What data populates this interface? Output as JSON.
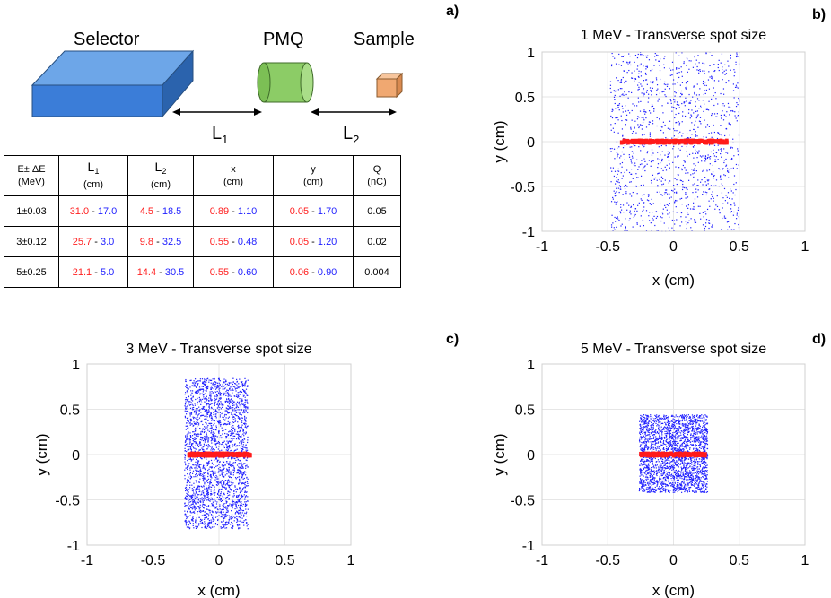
{
  "figure": {
    "panel_labels": {
      "a": "a)",
      "b": "b)",
      "c": "c)",
      "d": "d)"
    },
    "colors": {
      "beam_points": "#1f1fff",
      "red_line": "#ff1a1a",
      "selector": "#3b7dd8",
      "pmq": "#8ccc66",
      "sample": "#f0a871",
      "low_value": "#ff2020",
      "high_value": "#1f1fff"
    }
  },
  "diagram": {
    "labels": {
      "selector": "Selector",
      "pmq": "PMQ",
      "sample": "Sample"
    },
    "distances": {
      "l1": "L",
      "l1_sub": "1",
      "l2": "L",
      "l2_sub": "2"
    }
  },
  "table": {
    "headers": [
      {
        "line1": "E± ΔE",
        "line2": "(MeV)"
      },
      {
        "line1": "L",
        "sub": "1",
        "line2": "(cm)"
      },
      {
        "line1": "L",
        "sub": "2",
        "line2": "(cm)"
      },
      {
        "line1": "x",
        "line2": "(cm)"
      },
      {
        "line1": "y",
        "line2": "(cm)"
      },
      {
        "line1": "Q",
        "line2": "(nC)"
      }
    ],
    "rows": [
      {
        "energy": "1±0.03",
        "l1_a": "31.0",
        "l1_b": "17.0",
        "l2_a": "4.5",
        "l2_b": "18.5",
        "x_a": "0.89",
        "x_b": "1.10",
        "y_a": "0.05",
        "y_b": "1.70",
        "q": "0.05"
      },
      {
        "energy": "3±0.12",
        "l1_a": "25.7",
        "l1_b": "3.0",
        "l2_a": "9.8",
        "l2_b": "32.5",
        "x_a": "0.55",
        "x_b": "0.48",
        "y_a": "0.05",
        "y_b": "1.20",
        "q": "0.02"
      },
      {
        "energy": "5±0.25",
        "l1_a": "21.1",
        "l1_b": "5.0",
        "l2_a": "14.4",
        "l2_b": "30.5",
        "x_a": "0.55",
        "x_b": "0.60",
        "y_a": "0.06",
        "y_b": "0.90",
        "q": "0.004"
      }
    ],
    "separator": " - "
  },
  "chart_data": [
    {
      "type": "scatter",
      "panel": "b)",
      "title": "1 MeV - Transverse spot size",
      "xlabel": "x (cm)",
      "ylabel": "y (cm)",
      "xlim": [
        -1,
        1
      ],
      "ylim": [
        -1,
        1
      ],
      "xticks": [
        -1,
        -0.5,
        0,
        0.5,
        1
      ],
      "yticks": [
        -1,
        -0.5,
        0,
        0.5,
        1
      ],
      "xtick_labels": [
        "-1",
        "-0.5",
        "0",
        "0.5",
        "1"
      ],
      "ytick_labels": [
        "-1",
        "-0.5",
        "0",
        "0.5",
        "1"
      ],
      "grid": true,
      "series": [
        {
          "color": "#1f1fff",
          "distribution": "uniform",
          "x_range": [
            -0.48,
            0.5
          ],
          "y_range": [
            -1.0,
            1.0
          ],
          "count": 1300
        },
        {
          "color": "#ff1a1a",
          "distribution": "line",
          "x_range": [
            -0.4,
            0.42
          ],
          "y_range": [
            -0.01,
            0.01
          ],
          "count": 150
        }
      ]
    },
    {
      "type": "scatter",
      "panel": "c)",
      "title": "3 MeV - Transverse spot size",
      "xlabel": "x (cm)",
      "ylabel": "y (cm)",
      "xlim": [
        -1,
        1
      ],
      "ylim": [
        -1,
        1
      ],
      "xticks": [
        -1,
        -0.5,
        0,
        0.5,
        1
      ],
      "yticks": [
        -1,
        -0.5,
        0,
        0.5,
        1
      ],
      "xtick_labels": [
        "-1",
        "-0.5",
        "0",
        "0.5",
        "1"
      ],
      "ytick_labels": [
        "-1",
        "-0.5",
        "0",
        "0.5",
        "1"
      ],
      "grid": true,
      "series": [
        {
          "color": "#1f1fff",
          "distribution": "uniform",
          "x_range": [
            -0.26,
            0.22
          ],
          "y_range": [
            -0.82,
            0.84
          ],
          "count": 2600
        },
        {
          "color": "#ff1a1a",
          "distribution": "line",
          "x_range": [
            -0.24,
            0.24
          ],
          "y_range": [
            -0.01,
            0.01
          ],
          "count": 120
        }
      ]
    },
    {
      "type": "scatter",
      "panel": "d)",
      "title": "5 MeV - Transverse spot size",
      "xlabel": "x (cm)",
      "ylabel": "y (cm)",
      "xlim": [
        -1,
        1
      ],
      "ylim": [
        -1,
        1
      ],
      "xticks": [
        -1,
        -0.5,
        0,
        0.5,
        1
      ],
      "yticks": [
        -1,
        -0.5,
        0,
        0.5,
        1
      ],
      "xtick_labels": [
        "-1",
        "-0.5",
        "0",
        "0.5",
        "1"
      ],
      "ytick_labels": [
        "-1",
        "-0.5",
        "0",
        "0.5",
        "1"
      ],
      "grid": true,
      "series": [
        {
          "color": "#1f1fff",
          "distribution": "uniform",
          "x_range": [
            -0.26,
            0.26
          ],
          "y_range": [
            -0.42,
            0.44
          ],
          "count": 2400
        },
        {
          "color": "#ff1a1a",
          "distribution": "line",
          "x_range": [
            -0.25,
            0.25
          ],
          "y_range": [
            -0.01,
            0.01
          ],
          "count": 120
        }
      ]
    }
  ]
}
